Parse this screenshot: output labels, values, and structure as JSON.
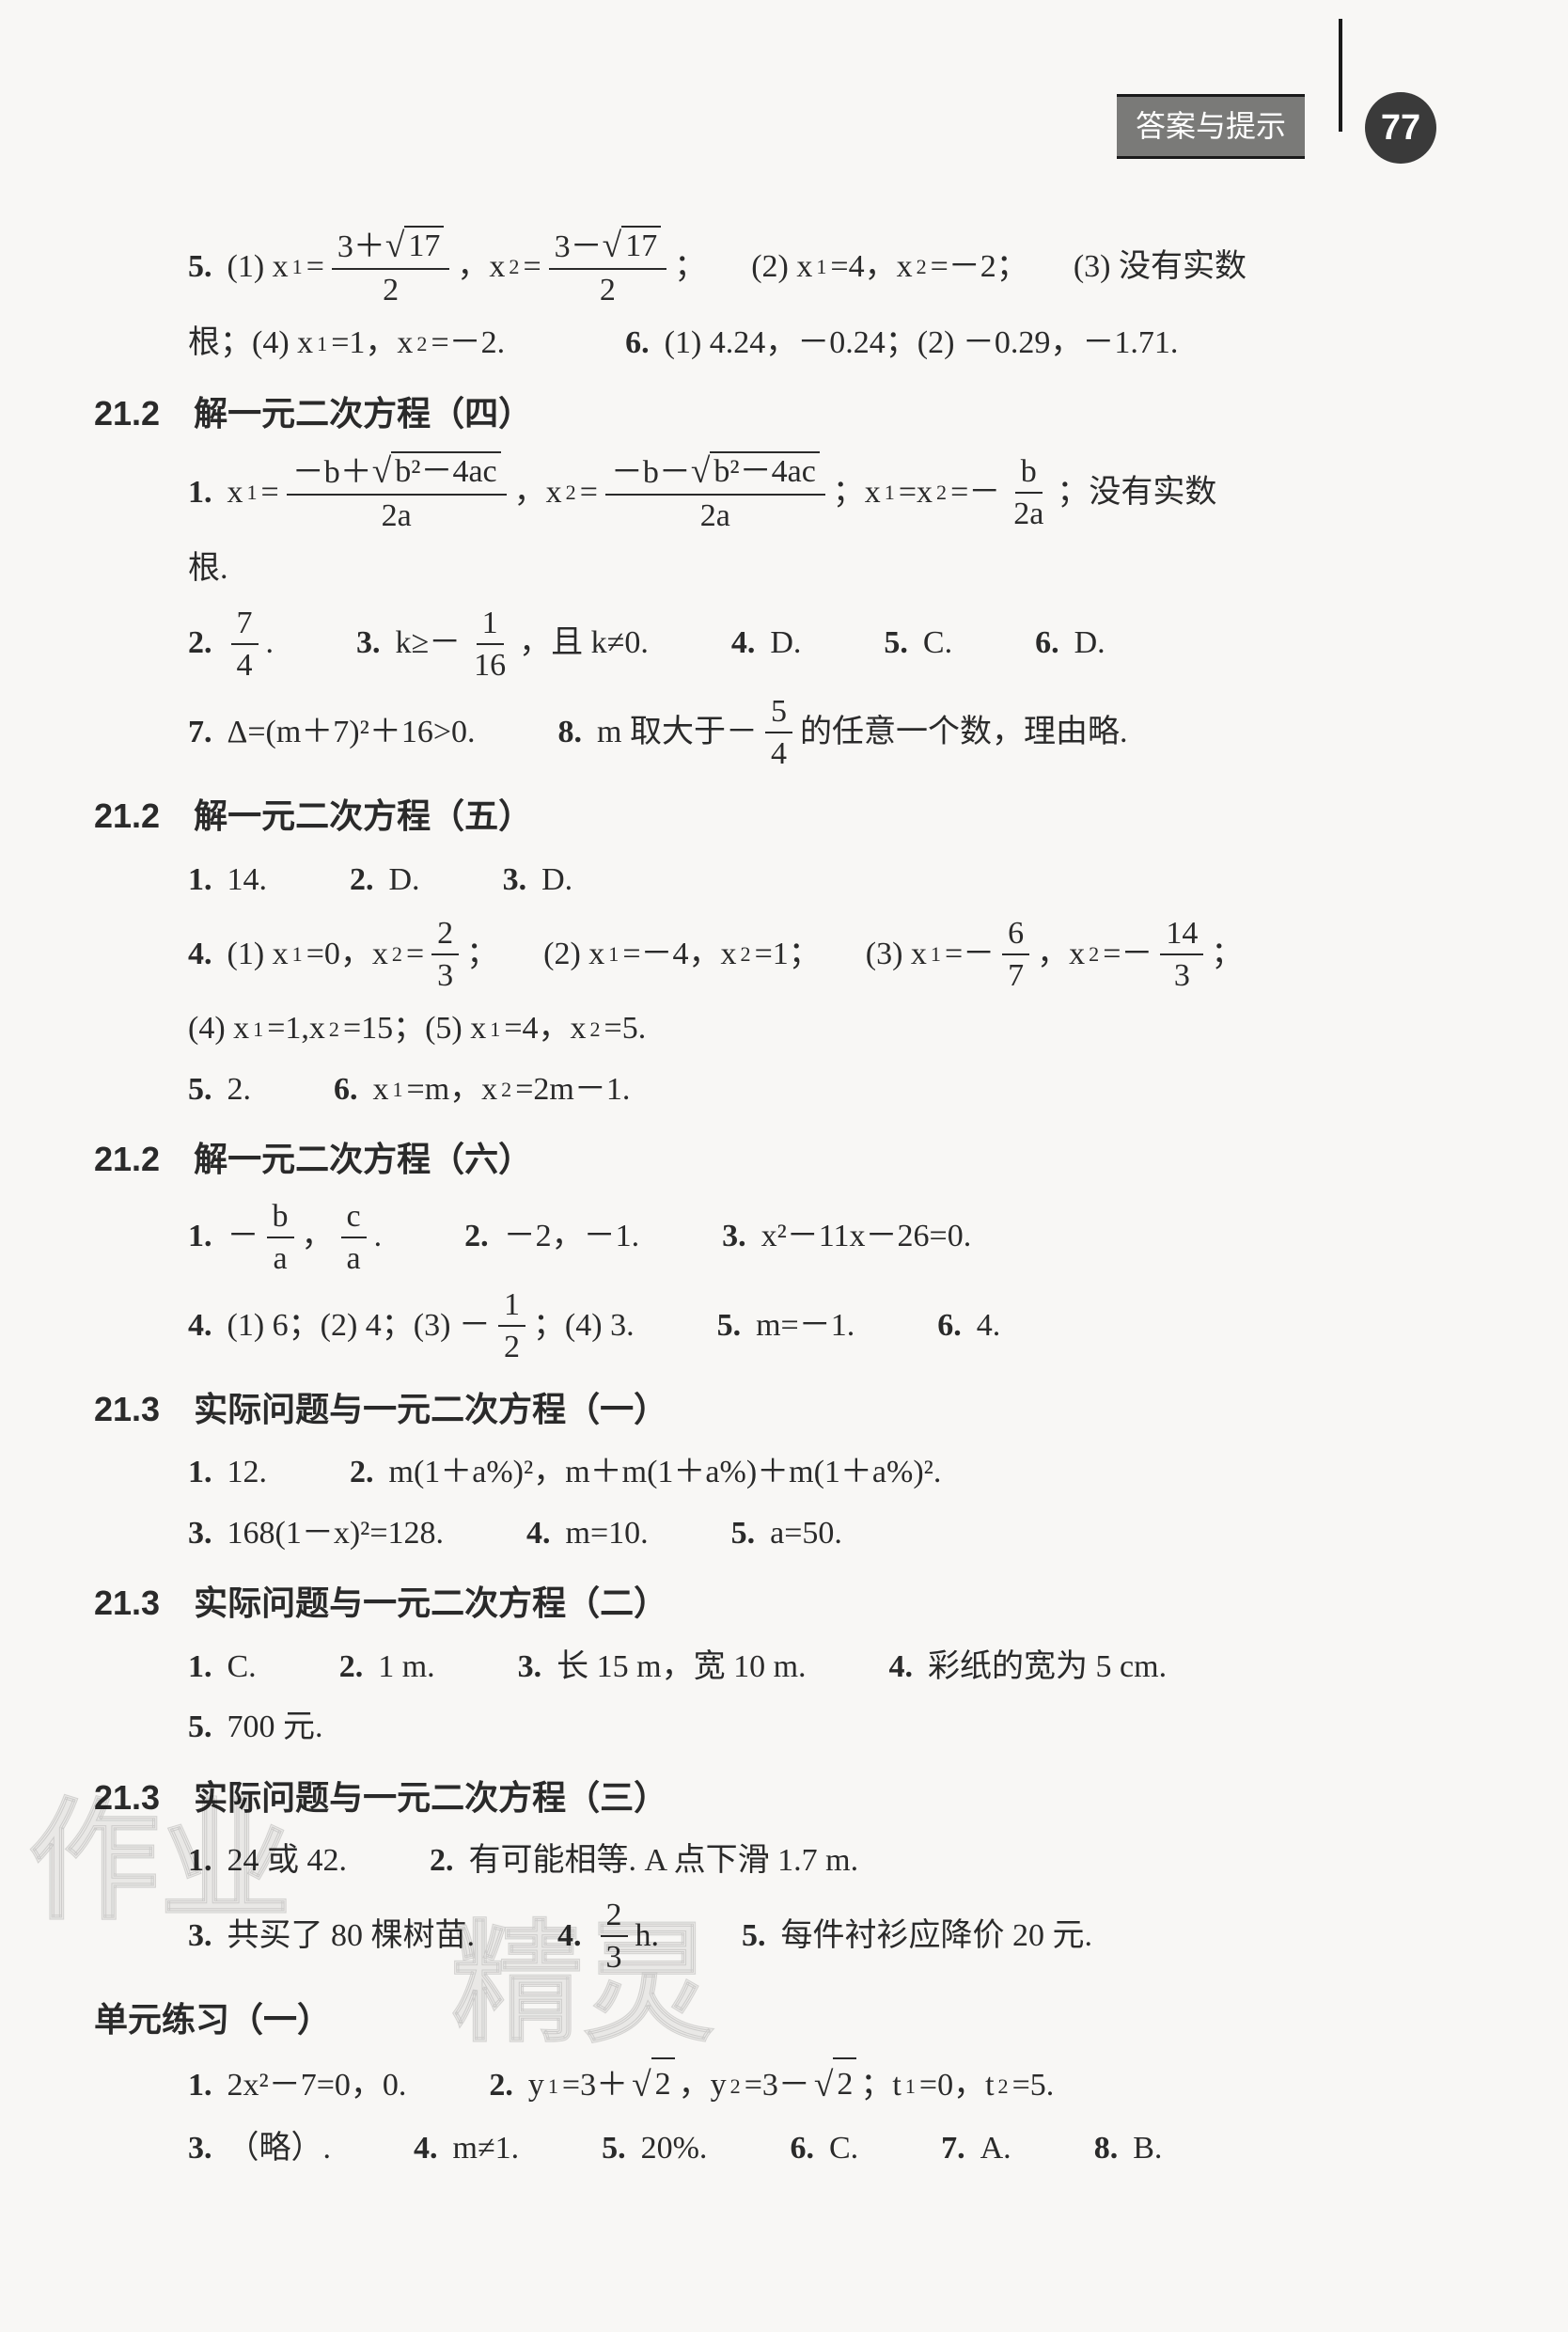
{
  "page": {
    "label": "答案与提示",
    "number": "77",
    "text_color": "#2a2a2a",
    "bg_color": "#f8f7f5",
    "badge_bg": "#3a3a3a",
    "label_bg": "#7a7a78"
  },
  "watermark": {
    "text1": "作业",
    "text2": "精灵"
  },
  "sec_21_2_4": {
    "title": "21.2　解一元二次方程（四）",
    "pre5": {
      "n": "5.",
      "p1a": "(1) x",
      "p1b": "=",
      "fr1t": "3＋",
      "sq1": "17",
      "fr1b": "2",
      "comma": "，x",
      "eq2": "=",
      "fr2t": "3－",
      "sq2": "17",
      "fr2b": "2",
      "semi": "；",
      "p2": "(2) x",
      "p2b": "=4，x",
      "p2c": "=－2；",
      "p3": "(3) 没有实数"
    },
    "pre5b": {
      "a": "根；(4) x",
      "b": "=1，x",
      "c": "=－2."
    },
    "pre6": {
      "n": "6.",
      "a": "(1) 4.24，－0.24；(2) －0.29，－1.71."
    },
    "q1": {
      "n": "1.",
      "a": "x",
      "eq": "=",
      "t1p": "－b＋",
      "sq": "b²－4ac",
      "b1": "2a",
      "c": "，x",
      "eq2": "=",
      "t2p": "－b－",
      "b2": "2a",
      "semi": "；x",
      "eq3": "=x",
      "eq4": "=－",
      "ft": "b",
      "fb": "2a",
      "tail": "；没有实数"
    },
    "q1b": "根.",
    "q2": {
      "n": "2.",
      "ft": "7",
      "fb": "4",
      "dot": "."
    },
    "q3": {
      "n": "3.",
      "a": "k≥－",
      "ft": "1",
      "fb": "16",
      "b": "，且 k≠0."
    },
    "q4": {
      "n": "4.",
      "a": "D."
    },
    "q5": {
      "n": "5.",
      "a": "C."
    },
    "q6": {
      "n": "6.",
      "a": "D."
    },
    "q7": {
      "n": "7.",
      "a": "Δ=(m＋7)²＋16>0."
    },
    "q8": {
      "n": "8.",
      "a": "m 取大于－",
      "ft": "5",
      "fb": "4",
      "b": "的任意一个数，理由略."
    }
  },
  "sec_21_2_5": {
    "title": "21.2　解一元二次方程（五）",
    "q1": {
      "n": "1.",
      "a": "14."
    },
    "q2": {
      "n": "2.",
      "a": "D."
    },
    "q3": {
      "n": "3.",
      "a": "D."
    },
    "q4": {
      "n": "4.",
      "p1a": "(1) x",
      "p1b": "=0，x",
      "p1c": "=",
      "ft1": "2",
      "fb1": "3",
      "s1": "；",
      "p2a": "(2) x",
      "p2b": "=－4，x",
      "p2c": "=1；",
      "p3a": "(3) x",
      "p3b": "=－",
      "ft3": "6",
      "fb3": "7",
      "p3c": "，x",
      "p3d": "=－",
      "ft4": "14",
      "fb4": "3",
      "s3": "；"
    },
    "q4b": {
      "a": "(4) x",
      "b": "=1,x",
      "c": "=15；(5) x",
      "d": "=4，x",
      "e": "=5."
    },
    "q5": {
      "n": "5.",
      "a": "2."
    },
    "q6": {
      "n": "6.",
      "a": "x",
      "b": "=m，x",
      "c": "=2m－1."
    }
  },
  "sec_21_2_6": {
    "title": "21.2　解一元二次方程（六）",
    "q1": {
      "n": "1.",
      "a": "－",
      "ft1": "b",
      "fb1": "a",
      "b": "，",
      "ft2": "c",
      "fb2": "a",
      "c": "."
    },
    "q2": {
      "n": "2.",
      "a": "－2，－1."
    },
    "q3": {
      "n": "3.",
      "a": "x²－11x－26=0."
    },
    "q4": {
      "n": "4.",
      "a": "(1) 6；(2) 4；(3) －",
      "ft": "1",
      "fb": "2",
      "b": "；(4) 3."
    },
    "q5": {
      "n": "5.",
      "a": "m=－1."
    },
    "q6": {
      "n": "6.",
      "a": "4."
    }
  },
  "sec_21_3_1": {
    "title": "21.3　实际问题与一元二次方程（一）",
    "q1": {
      "n": "1.",
      "a": "12."
    },
    "q2": {
      "n": "2.",
      "a": "m(1＋a%)²，m＋m(1＋a%)＋m(1＋a%)²."
    },
    "q3": {
      "n": "3.",
      "a": "168(1－x)²=128."
    },
    "q4": {
      "n": "4.",
      "a": "m=10."
    },
    "q5": {
      "n": "5.",
      "a": "a=50."
    }
  },
  "sec_21_3_2": {
    "title": "21.3　实际问题与一元二次方程（二）",
    "q1": {
      "n": "1.",
      "a": "C."
    },
    "q2": {
      "n": "2.",
      "a": "1 m."
    },
    "q3": {
      "n": "3.",
      "a": "长 15 m，宽 10 m."
    },
    "q4": {
      "n": "4.",
      "a": "彩纸的宽为 5 cm."
    },
    "q5": {
      "n": "5.",
      "a": "700 元."
    }
  },
  "sec_21_3_3": {
    "title": "21.3　实际问题与一元二次方程（三）",
    "q1": {
      "n": "1.",
      "a": "24 或 42."
    },
    "q2": {
      "n": "2.",
      "a": "有可能相等. A 点下滑 1.7 m."
    },
    "q3": {
      "n": "3.",
      "a": "共买了 80 棵树苗."
    },
    "q4": {
      "n": "4.",
      "ft": "2",
      "fb": "3",
      "a": " h."
    },
    "q5": {
      "n": "5.",
      "a": "每件衬衫应降价 20 元."
    }
  },
  "sec_unit": {
    "title": "单元练习（一）",
    "q1": {
      "n": "1.",
      "a": "2x²－7=0，0."
    },
    "q2": {
      "n": "2.",
      "a": "y",
      "b": "=3＋",
      "sq": "2",
      "c": "，y",
      "d": "=3－",
      "e": "；t",
      "f": "=0，t",
      "g": "=5."
    },
    "q3": {
      "n": "3.",
      "a": "（略）."
    },
    "q4": {
      "n": "4.",
      "a": "m≠1."
    },
    "q5": {
      "n": "5.",
      "a": "20%."
    },
    "q6": {
      "n": "6.",
      "a": "C."
    },
    "q7": {
      "n": "7.",
      "a": "A."
    },
    "q8": {
      "n": "8.",
      "a": "B."
    }
  }
}
